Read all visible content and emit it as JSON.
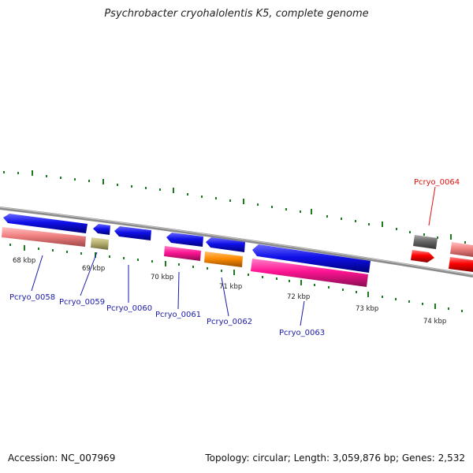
{
  "title": "Psychrobacter cryohalolentis K5, complete genome",
  "footer": {
    "accession": "Accession: NC_007969",
    "stats": "Topology: circular; Length: 3,059,876 bp; Genes: 2,532"
  },
  "scale_labels": [
    {
      "id": "kbp68",
      "text": "68 kbp"
    },
    {
      "id": "kbp69",
      "text": "69 kbp"
    },
    {
      "id": "kbp70",
      "text": "70 kbp"
    },
    {
      "id": "kbp71",
      "text": "71 kbp"
    },
    {
      "id": "kbp72",
      "text": "72 kbp"
    },
    {
      "id": "kbp73",
      "text": "73 kbp"
    },
    {
      "id": "kbp74",
      "text": "74 kbp"
    }
  ],
  "gene_labels": [
    {
      "id": "g58",
      "text": "Pcryo_0058",
      "color": "#1a1aaa"
    },
    {
      "id": "g59",
      "text": "Pcryo_0059",
      "color": "#1a1aaa"
    },
    {
      "id": "g60",
      "text": "Pcryo_0060",
      "color": "#1a1aaa"
    },
    {
      "id": "g61",
      "text": "Pcryo_0061",
      "color": "#1a1aaa"
    },
    {
      "id": "g62",
      "text": "Pcryo_0062",
      "color": "#1a1aaa"
    },
    {
      "id": "g63",
      "text": "Pcryo_0063",
      "color": "#1a1aaa"
    },
    {
      "id": "g64",
      "text": "Pcryo_0064",
      "color": "#dd1111"
    }
  ],
  "colors": {
    "backbone": "#8a8a8a",
    "tick": "#1f7a1f",
    "cds_blue": "#1010e0",
    "pink_rrna": "#f08080",
    "khaki": "#b8b070",
    "magenta": "#ff1493",
    "orange": "#ff8c00",
    "gray": "#666666",
    "red": "#ff0000"
  }
}
